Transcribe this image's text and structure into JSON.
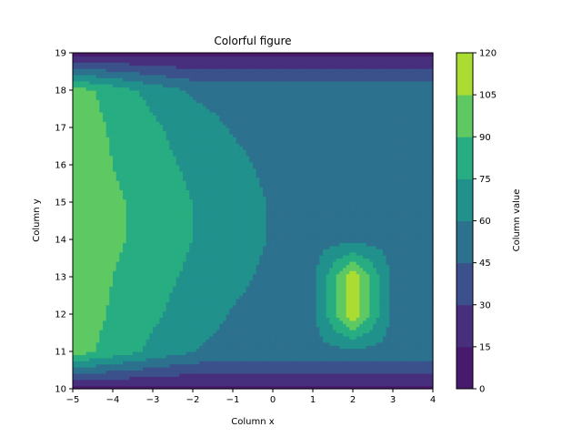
{
  "chart_data": {
    "type": "heatmap",
    "subtype": "filled-contour",
    "title": "Colorful figure",
    "xlabel": "Column x",
    "ylabel": "Column y",
    "xlim": [
      -5,
      4
    ],
    "ylim": [
      10,
      19
    ],
    "x_ticks": [
      "−5",
      "−4",
      "−3",
      "−2",
      "−1",
      "0",
      "1",
      "2",
      "3",
      "4"
    ],
    "y_ticks": [
      "10",
      "11",
      "12",
      "13",
      "14",
      "15",
      "16",
      "17",
      "18",
      "19"
    ],
    "x": [
      -5,
      -4,
      -3,
      -2,
      -1,
      0,
      1,
      2,
      3,
      4
    ],
    "y": [
      10,
      11,
      12,
      13,
      14,
      15,
      16,
      17,
      18,
      19
    ],
    "z": [
      [
        10,
        10,
        10,
        10,
        10,
        10,
        10,
        10,
        10,
        10
      ],
      [
        98,
        84,
        71,
        60,
        56,
        55,
        55,
        55,
        55,
        55
      ],
      [
        100,
        88,
        78,
        66,
        59,
        56,
        55,
        115,
        55,
        55
      ],
      [
        100,
        90,
        82,
        71,
        63,
        57,
        55,
        115,
        55,
        55
      ],
      [
        100,
        92,
        86,
        75,
        66,
        59,
        55,
        55,
        55,
        55
      ],
      [
        100,
        92,
        86,
        75,
        66,
        59,
        55,
        55,
        55,
        55
      ],
      [
        100,
        90,
        82,
        71,
        63,
        57,
        55,
        55,
        55,
        55
      ],
      [
        100,
        88,
        78,
        66,
        59,
        56,
        55,
        55,
        55,
        55
      ],
      [
        98,
        84,
        70,
        58,
        55,
        55,
        55,
        55,
        55,
        55
      ],
      [
        10,
        10,
        10,
        10,
        10,
        10,
        10,
        10,
        10,
        10
      ]
    ],
    "levels": [
      0,
      15,
      30,
      45,
      60,
      75,
      90,
      105,
      120
    ],
    "colorbar": {
      "label": "Column value",
      "ticks": [
        "0",
        "15",
        "30",
        "45",
        "60",
        "75",
        "90",
        "105",
        "120"
      ],
      "colors": [
        "#481a6c",
        "#472f7d",
        "#3b518b",
        "#2c718e",
        "#21918c",
        "#27ad81",
        "#5ec962",
        "#aadc32",
        "#dde318"
      ]
    }
  }
}
